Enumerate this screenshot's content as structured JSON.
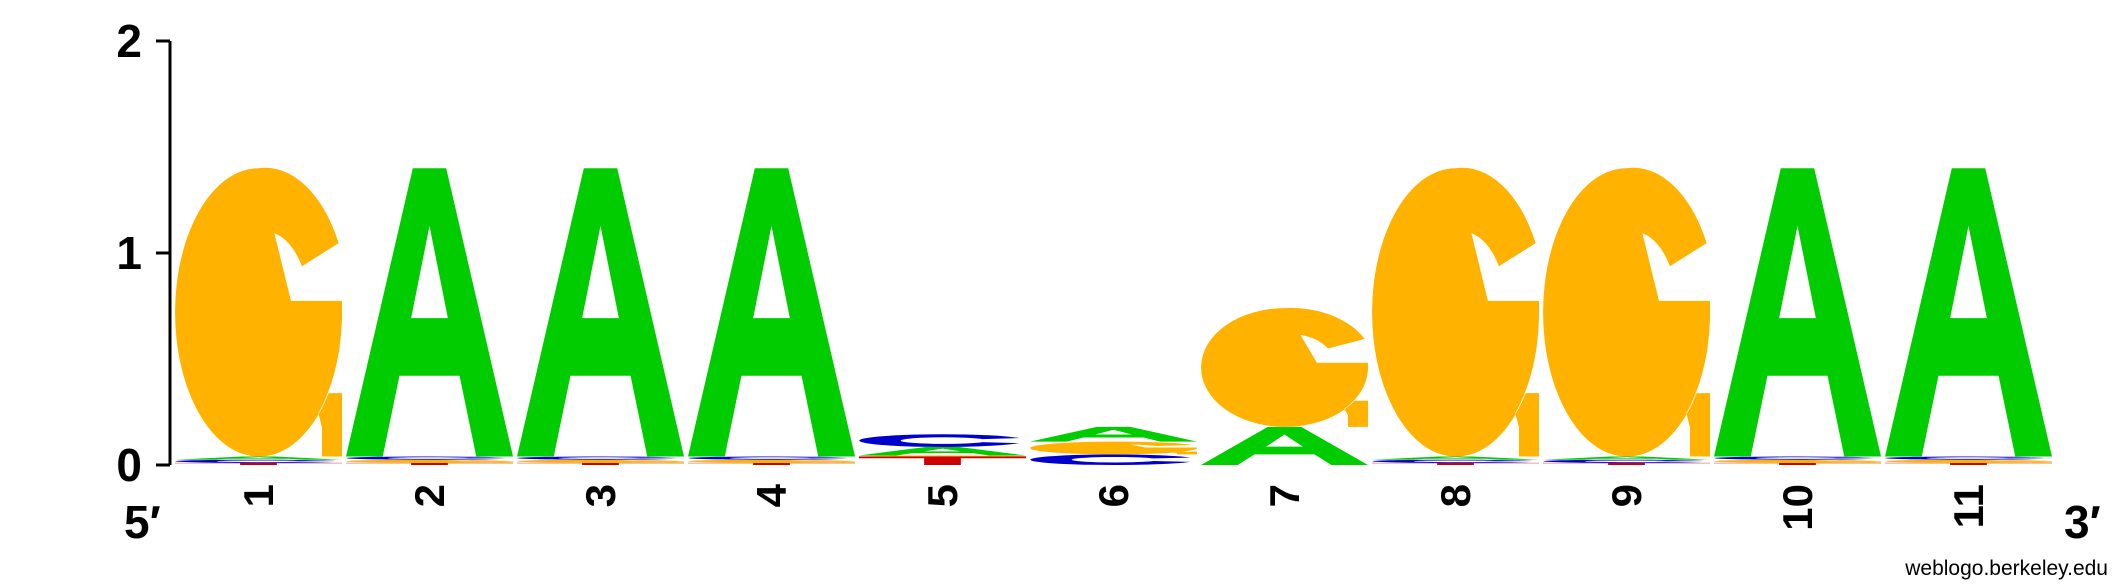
{
  "chart_data": {
    "type": "sequence-logo",
    "title": "",
    "xlabel": "",
    "ylabel": "",
    "ylim": [
      0,
      2
    ],
    "y_ticks": [
      "0",
      "1",
      "2"
    ],
    "positions": [
      "1",
      "2",
      "3",
      "4",
      "5",
      "6",
      "7",
      "8",
      "9",
      "10",
      "11"
    ],
    "end_labels": {
      "left": "5′",
      "right": "3′"
    },
    "footer": "weblogo.berkeley.edu",
    "colors": {
      "A": "#00CC00",
      "C": "#0000CC",
      "G": "#FFB300",
      "T": "#CC0000"
    },
    "stacks": [
      [
        {
          "letter": "T",
          "height": 0.01
        },
        {
          "letter": "C",
          "height": 0.015
        },
        {
          "letter": "A",
          "height": 0.015
        },
        {
          "letter": "G",
          "height": 1.36
        }
      ],
      [
        {
          "letter": "T",
          "height": 0.01
        },
        {
          "letter": "G",
          "height": 0.015
        },
        {
          "letter": "C",
          "height": 0.015
        },
        {
          "letter": "A",
          "height": 1.36
        }
      ],
      [
        {
          "letter": "T",
          "height": 0.01
        },
        {
          "letter": "G",
          "height": 0.015
        },
        {
          "letter": "C",
          "height": 0.015
        },
        {
          "letter": "A",
          "height": 1.36
        }
      ],
      [
        {
          "letter": "T",
          "height": 0.01
        },
        {
          "letter": "G",
          "height": 0.015
        },
        {
          "letter": "C",
          "height": 0.015
        },
        {
          "letter": "A",
          "height": 1.36
        }
      ],
      [
        {
          "letter": "T",
          "height": 0.04
        },
        {
          "letter": "G",
          "height": 0.005
        },
        {
          "letter": "A",
          "height": 0.04
        },
        {
          "letter": "C",
          "height": 0.06
        }
      ],
      [
        {
          "letter": "C",
          "height": 0.05
        },
        {
          "letter": "G",
          "height": 0.06
        },
        {
          "letter": "A",
          "height": 0.07
        }
      ],
      [
        {
          "letter": "A",
          "height": 0.18
        },
        {
          "letter": "G",
          "height": 0.56
        }
      ],
      [
        {
          "letter": "T",
          "height": 0.01
        },
        {
          "letter": "C",
          "height": 0.015
        },
        {
          "letter": "A",
          "height": 0.015
        },
        {
          "letter": "G",
          "height": 1.36
        }
      ],
      [
        {
          "letter": "T",
          "height": 0.01
        },
        {
          "letter": "C",
          "height": 0.015
        },
        {
          "letter": "A",
          "height": 0.015
        },
        {
          "letter": "G",
          "height": 1.36
        }
      ],
      [
        {
          "letter": "T",
          "height": 0.01
        },
        {
          "letter": "G",
          "height": 0.015
        },
        {
          "letter": "C",
          "height": 0.015
        },
        {
          "letter": "A",
          "height": 1.36
        }
      ],
      [
        {
          "letter": "T",
          "height": 0.01
        },
        {
          "letter": "G",
          "height": 0.015
        },
        {
          "letter": "C",
          "height": 0.015
        },
        {
          "letter": "A",
          "height": 1.36
        }
      ]
    ]
  }
}
